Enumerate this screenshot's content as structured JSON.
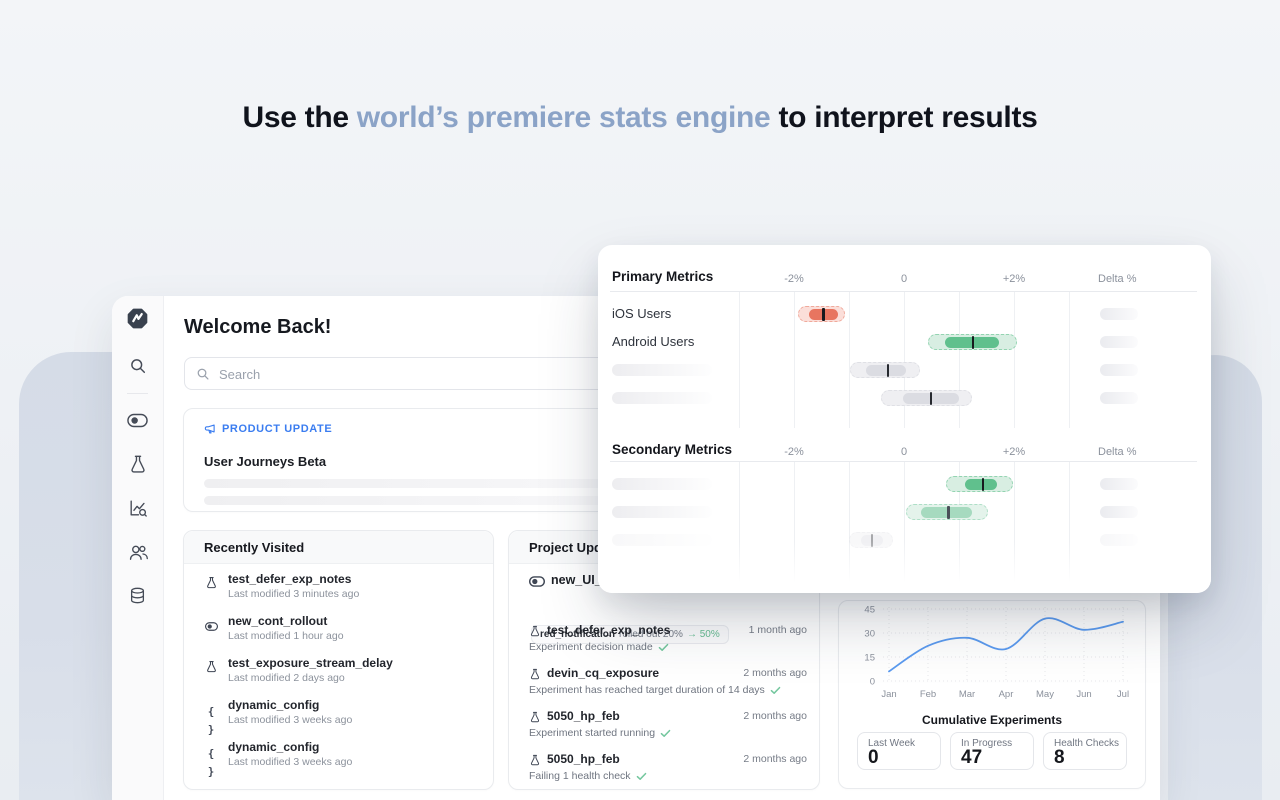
{
  "headline": {
    "pre": "Use the ",
    "highlight": "world’s premiere stats engine",
    "post": " to interpret results"
  },
  "sidebar": {
    "icons": [
      "statsig-logo",
      "search",
      "feature-gates-toggle",
      "experiments-flask",
      "metrics-chart",
      "users",
      "database"
    ]
  },
  "main": {
    "welcome_title": "Welcome Back!",
    "search_placeholder": "Search"
  },
  "product_update": {
    "badge": "PRODUCT UPDATE",
    "title": "User Journeys Beta"
  },
  "recently_visited": {
    "title": "Recently Visited",
    "items": [
      {
        "icon": "flask",
        "name": "test_defer_exp_notes",
        "meta": "Last modified 3 minutes ago"
      },
      {
        "icon": "toggle",
        "name": "new_cont_rollout",
        "meta": "Last modified 1 hour ago"
      },
      {
        "icon": "flask",
        "name": "test_exposure_stream_delay",
        "meta": "Last modified 2 days ago"
      },
      {
        "icon": "braces",
        "name": "dynamic_config",
        "meta": "Last modified 3 weeks ago"
      },
      {
        "icon": "braces",
        "name": "dynamic_config",
        "meta": "Last modified 3 weeks ago"
      }
    ]
  },
  "project_updates": {
    "title": "Project Updates",
    "feature": {
      "icon": "toggle",
      "name": "new_UI_rollout",
      "chip_name": "red_notification",
      "chip_action": "rolled out 20%",
      "chip_delta": "→ 50%"
    },
    "items": [
      {
        "icon": "flask",
        "name": "test_defer_exp_notes",
        "status": "Experiment decision made",
        "time": "1 month ago"
      },
      {
        "icon": "flask",
        "name": "devin_cq_exposure",
        "status": "Experiment has reached target duration of 14 days",
        "time": "2 months ago"
      },
      {
        "icon": "flask",
        "name": "5050_hp_feb",
        "status": "Experiment started running",
        "time": "2 months ago"
      },
      {
        "icon": "flask",
        "name": "5050_hp_feb",
        "status": "Failing 1 health check",
        "time": "2 months ago"
      }
    ]
  },
  "metrics_panel": {
    "axis": {
      "ticks": [
        {
          "v": -2,
          "label": "-2%"
        },
        {
          "v": 0,
          "label": "0"
        },
        {
          "v": 2,
          "label": "+2%"
        }
      ],
      "delta_label": "Delta %"
    }
  },
  "experiments_card": {
    "title": "Cumulative Experiments",
    "stats": [
      {
        "label": "Last Week",
        "value": "0"
      },
      {
        "label": "In Progress",
        "value": "47"
      },
      {
        "label": "Health Checks",
        "value": "8"
      }
    ]
  },
  "chart_data": [
    {
      "type": "forest-ci",
      "title": "Primary Metrics",
      "xlim": [
        -3,
        3
      ],
      "tick_labels": [
        "-2%",
        "0",
        "+2%"
      ],
      "rows": [
        {
          "label": "iOS Users",
          "color": "red",
          "outer": [
            -1.92,
            -1.07
          ],
          "inner": [
            -1.74,
            -1.22
          ],
          "mean": -1.48
        },
        {
          "label": "Android Users",
          "color": "green",
          "outer": [
            0.44,
            2.05
          ],
          "inner": [
            0.73,
            1.71
          ],
          "mean": 1.24
        },
        {
          "label": "",
          "skeleton": true,
          "color": "gray",
          "outer": [
            -0.98,
            0.29
          ],
          "inner": [
            -0.71,
            0.02
          ],
          "mean": -0.31
        },
        {
          "label": "",
          "skeleton": true,
          "color": "gray",
          "outer": [
            -0.42,
            1.23
          ],
          "inner": [
            -0.03,
            0.99
          ],
          "mean": 0.47
        }
      ]
    },
    {
      "type": "forest-ci",
      "title": "Secondary Metrics",
      "xlim": [
        -3,
        3
      ],
      "tick_labels": [
        "-2%",
        "0",
        "+2%"
      ],
      "rows": [
        {
          "label": "",
          "skeleton": true,
          "color": "green",
          "outer": [
            0.76,
            1.98
          ],
          "inner": [
            1.1,
            1.67
          ],
          "mean": 1.42
        },
        {
          "label": "",
          "skeleton": true,
          "color": "green-light",
          "outer": [
            0.04,
            1.53
          ],
          "inner": [
            0.3,
            1.22
          ],
          "mean": 0.79
        },
        {
          "label": "",
          "skeleton": true,
          "color": "gray",
          "faded": true,
          "outer": [
            -1.0,
            -0.2
          ],
          "inner": [
            -0.8,
            -0.4
          ],
          "mean": -0.6
        }
      ]
    },
    {
      "type": "line",
      "title": "Cumulative Experiments",
      "x": [
        "Jan",
        "Feb",
        "Mar",
        "Apr",
        "May",
        "Jun",
        "Jul"
      ],
      "values": [
        6,
        22,
        27,
        20,
        39,
        32,
        37
      ],
      "yticks": [
        0,
        15,
        30,
        45
      ],
      "ylim": [
        0,
        48
      ],
      "grid": "dotted",
      "color": "#5b9bf0"
    }
  ],
  "colors": {
    "headline_highlight": "#8ba3c7",
    "accent_blue": "#3b7df0",
    "positive_green": "#60c08d",
    "negative_red": "#e87560",
    "line_blue": "#5b9bf0"
  }
}
